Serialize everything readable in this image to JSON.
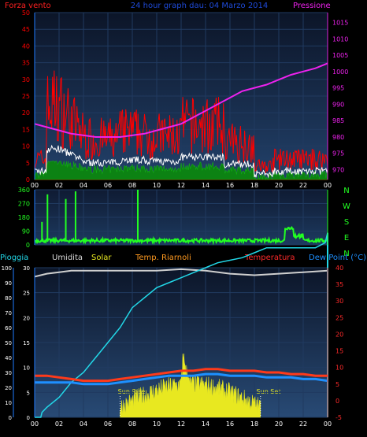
{
  "header": {
    "left_label": "Forza vento",
    "title": "24 hour graph dau: 04 Marzo 2014",
    "right_label": "Pressione"
  },
  "colors": {
    "wind": "#ff2020",
    "gust": "#ff0000",
    "avg": "#ffffff",
    "calm": "#0a8a0a",
    "pressure": "#ee22ee",
    "direction": "#22ff22",
    "humidity": "#cfcfcf",
    "solar": "#e8e820",
    "temp": "#ff3a1a",
    "dew": "#1e90ff",
    "rain": "#22d8e8",
    "axis_left": "#1e7bff",
    "axis_right": "#dd22dd",
    "temp_axis": "#ff2a2a",
    "plot_bg_top": "#101c33",
    "plot_bg_bottom": "#1f3a5c"
  },
  "x_ticks": [
    "00",
    "02",
    "04",
    "06",
    "08",
    "10",
    "12",
    "14",
    "16",
    "18",
    "20",
    "22",
    "00"
  ],
  "wind_chart": {
    "left_ticks": [
      "0",
      "5",
      "10",
      "15",
      "20",
      "25",
      "30",
      "35",
      "40",
      "45",
      "50"
    ],
    "right_ticks": [
      "970",
      "975",
      "980",
      "985",
      "990",
      "995",
      "1000",
      "1005",
      "1010",
      "1015"
    ],
    "wind_range": [
      0,
      50
    ],
    "pressure_range": [
      967,
      1018
    ],
    "pressure_points": [
      [
        0,
        984
      ],
      [
        1,
        983
      ],
      [
        2,
        982
      ],
      [
        3,
        981
      ],
      [
        4,
        980.5
      ],
      [
        5,
        980
      ],
      [
        6,
        980
      ],
      [
        7,
        980
      ],
      [
        8,
        980.5
      ],
      [
        9,
        981
      ],
      [
        10,
        982
      ],
      [
        11,
        983
      ],
      [
        12,
        984
      ],
      [
        13,
        986
      ],
      [
        14,
        988
      ],
      [
        15,
        990
      ],
      [
        16,
        992
      ],
      [
        17,
        994
      ],
      [
        18,
        995
      ],
      [
        19,
        996
      ],
      [
        20,
        997.5
      ],
      [
        21,
        999
      ],
      [
        22,
        1000
      ],
      [
        23,
        1001
      ],
      [
        24,
        1002.5
      ]
    ]
  },
  "direction_chart": {
    "left_ticks": [
      "0",
      "90",
      "180",
      "270",
      "360"
    ],
    "right_labels": [
      "N",
      "W",
      "S",
      "E",
      "N"
    ],
    "range": [
      0,
      360
    ]
  },
  "bottom_header": {
    "pioggia": "Pioggia",
    "umidita": "Umidita",
    "solar": "Solar",
    "temp_riarnoli": "Temp. Riarnoli",
    "temperatura": "Temperatura",
    "dew_point": "Dew Point (°C)"
  },
  "bottom_chart": {
    "left_ticks_outer": [
      "0",
      "10",
      "20",
      "30",
      "40",
      "50",
      "60",
      "70",
      "80",
      "90",
      "100"
    ],
    "left_ticks_inner": [
      "0",
      "5",
      "10",
      "15",
      "20",
      "25",
      "30"
    ],
    "right_ticks": [
      "-5",
      "0",
      "5",
      "10",
      "15",
      "20",
      "25",
      "30",
      "35",
      "40"
    ],
    "temp_range": [
      -5,
      40
    ],
    "pct_range": [
      0,
      100
    ],
    "sun_rise": "Sun Rise",
    "sun_set": "Sun Set",
    "sun_rise_hour": 7.0,
    "sun_set_hour": 18.5,
    "humidity_points": [
      [
        0,
        94
      ],
      [
        1,
        96
      ],
      [
        2,
        97
      ],
      [
        3,
        98
      ],
      [
        4,
        98
      ],
      [
        6,
        98
      ],
      [
        8,
        98
      ],
      [
        10,
        98
      ],
      [
        12,
        99
      ],
      [
        14,
        98
      ],
      [
        16,
        96
      ],
      [
        18,
        95
      ],
      [
        20,
        96
      ],
      [
        22,
        97
      ],
      [
        24,
        98
      ]
    ],
    "rain_points": [
      [
        0,
        0
      ],
      [
        0.5,
        0
      ],
      [
        0.6,
        1
      ],
      [
        1,
        2
      ],
      [
        2,
        4
      ],
      [
        3,
        7
      ],
      [
        4,
        9
      ],
      [
        5,
        12
      ],
      [
        6,
        15
      ],
      [
        7,
        18
      ],
      [
        8,
        22
      ],
      [
        9,
        24
      ],
      [
        10,
        26
      ],
      [
        11,
        27
      ],
      [
        12,
        28
      ],
      [
        13,
        29
      ],
      [
        14,
        30
      ],
      [
        15,
        31
      ],
      [
        16,
        31.5
      ],
      [
        17,
        32
      ],
      [
        18,
        33
      ],
      [
        19,
        34
      ],
      [
        20,
        34
      ],
      [
        21,
        34
      ],
      [
        22,
        34
      ],
      [
        23,
        34
      ],
      [
        23.8,
        35
      ],
      [
        24,
        37
      ]
    ],
    "temp_points": [
      [
        0,
        7.5
      ],
      [
        1,
        7.5
      ],
      [
        2,
        7
      ],
      [
        3,
        6.5
      ],
      [
        4,
        6
      ],
      [
        5,
        6
      ],
      [
        6,
        6
      ],
      [
        7,
        6.5
      ],
      [
        8,
        7
      ],
      [
        9,
        7.5
      ],
      [
        10,
        8
      ],
      [
        11,
        8.5
      ],
      [
        12,
        9
      ],
      [
        13,
        9
      ],
      [
        14,
        9.5
      ],
      [
        15,
        9.5
      ],
      [
        16,
        9
      ],
      [
        17,
        9
      ],
      [
        18,
        9
      ],
      [
        19,
        8.5
      ],
      [
        20,
        8.5
      ],
      [
        21,
        8
      ],
      [
        22,
        8
      ],
      [
        23,
        7.5
      ],
      [
        24,
        7.5
      ]
    ],
    "dew_points": [
      [
        0,
        5.5
      ],
      [
        1,
        5.5
      ],
      [
        2,
        5.5
      ],
      [
        3,
        5.5
      ],
      [
        4,
        5
      ],
      [
        5,
        5
      ],
      [
        6,
        5
      ],
      [
        7,
        5.5
      ],
      [
        8,
        6
      ],
      [
        9,
        6.5
      ],
      [
        10,
        7
      ],
      [
        11,
        7.5
      ],
      [
        12,
        7.5
      ],
      [
        13,
        7.5
      ],
      [
        14,
        8
      ],
      [
        15,
        8
      ],
      [
        16,
        7.5
      ],
      [
        17,
        7.5
      ],
      [
        18,
        7.5
      ],
      [
        19,
        7
      ],
      [
        20,
        7
      ],
      [
        21,
        7
      ],
      [
        22,
        6.5
      ],
      [
        23,
        6.5
      ],
      [
        24,
        6
      ]
    ]
  }
}
